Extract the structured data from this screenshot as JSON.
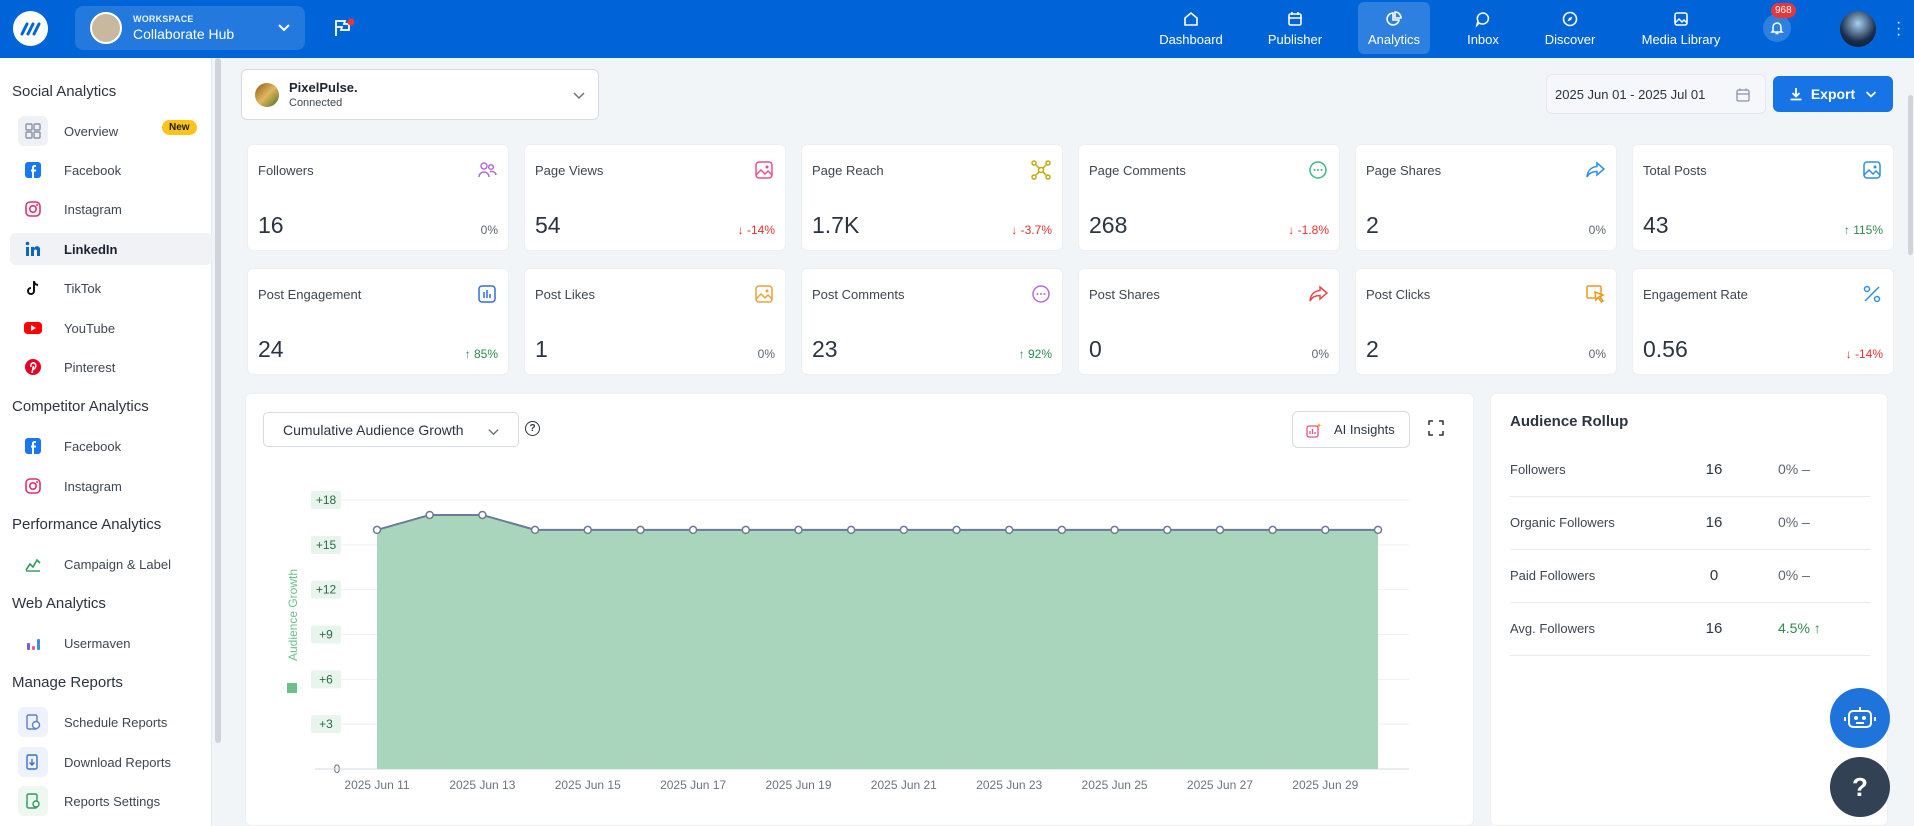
{
  "topbar": {
    "workspace_label": "WORKSPACE",
    "workspace_name": "Collaborate Hub",
    "nav": [
      {
        "label": "Dashboard",
        "icon": "home-icon"
      },
      {
        "label": "Publisher",
        "icon": "calendar-icon"
      },
      {
        "label": "Analytics",
        "icon": "analytics-icon",
        "active": true
      },
      {
        "label": "Inbox",
        "icon": "chat-icon"
      },
      {
        "label": "Discover",
        "icon": "compass-icon"
      },
      {
        "label": "Media Library",
        "icon": "image-icon"
      }
    ],
    "notifications": "968"
  },
  "sidebar": {
    "social_title": "Social Analytics",
    "social_items": [
      {
        "label": "Overview",
        "icon": "grid-icon"
      },
      {
        "label": "Facebook",
        "icon": "facebook-icon"
      },
      {
        "label": "Instagram",
        "icon": "instagram-icon"
      },
      {
        "label": "LinkedIn",
        "icon": "linkedin-icon",
        "active": true
      },
      {
        "label": "TikTok",
        "icon": "tiktok-icon"
      },
      {
        "label": "YouTube",
        "icon": "youtube-icon"
      },
      {
        "label": "Pinterest",
        "icon": "pinterest-icon"
      }
    ],
    "new_badge": "New",
    "competitor_title": "Competitor Analytics",
    "competitor_items": [
      {
        "label": "Facebook",
        "icon": "facebook-icon"
      },
      {
        "label": "Instagram",
        "icon": "instagram-icon"
      }
    ],
    "performance_title": "Performance Analytics",
    "performance_items": [
      {
        "label": "Campaign & Label",
        "icon": "campaign-icon"
      }
    ],
    "web_title": "Web Analytics",
    "web_items": [
      {
        "label": "Usermaven",
        "icon": "usermaven-icon"
      }
    ],
    "reports_title": "Manage Reports",
    "reports_items": [
      {
        "label": "Schedule Reports",
        "icon": "schedule-icon"
      },
      {
        "label": "Download Reports",
        "icon": "download-icon"
      },
      {
        "label": "Reports Settings",
        "icon": "settings-icon"
      }
    ]
  },
  "account": {
    "name": "PixelPulse.",
    "status": "Connected"
  },
  "date_range": "2025 Jun 01 - 2025 Jul 01",
  "export_label": "Export",
  "metrics": [
    {
      "title": "Followers",
      "value": "16",
      "change": "0%",
      "dir": "flat",
      "icon": "users-icon",
      "color": "#b46bd8"
    },
    {
      "title": "Page Views",
      "value": "54",
      "change": "-14%",
      "dir": "down",
      "icon": "image-icon",
      "color": "#e8508a"
    },
    {
      "title": "Page Reach",
      "value": "1.7K",
      "change": "-3.7%",
      "dir": "down",
      "icon": "network-icon",
      "color": "#c4a80c"
    },
    {
      "title": "Page Comments",
      "value": "268",
      "change": "-1.8%",
      "dir": "down",
      "icon": "comment-icon",
      "color": "#3cb88a"
    },
    {
      "title": "Page Shares",
      "value": "2",
      "change": "0%",
      "dir": "flat",
      "icon": "share-icon",
      "color": "#2f8fe0"
    },
    {
      "title": "Total Posts",
      "value": "43",
      "change": "115%",
      "dir": "up",
      "icon": "image-icon",
      "color": "#2f8fe0"
    },
    {
      "title": "Post Engagement",
      "value": "24",
      "change": "85%",
      "dir": "up",
      "icon": "bar-chart-icon",
      "color": "#2f6fe0"
    },
    {
      "title": "Post Likes",
      "value": "1",
      "change": "0%",
      "dir": "flat",
      "icon": "image-icon",
      "color": "#e8a23c"
    },
    {
      "title": "Post Comments",
      "value": "23",
      "change": "92%",
      "dir": "up",
      "icon": "comment-icon",
      "color": "#b46bd8"
    },
    {
      "title": "Post Shares",
      "value": "0",
      "change": "0%",
      "dir": "flat",
      "icon": "share-icon",
      "color": "#e84a4a"
    },
    {
      "title": "Post Clicks",
      "value": "2",
      "change": "0%",
      "dir": "flat",
      "icon": "click-icon",
      "color": "#e89a1c"
    },
    {
      "title": "Engagement Rate",
      "value": "0.56",
      "change": "-14%",
      "dir": "down",
      "icon": "percent-icon",
      "color": "#2f8fe0"
    }
  ],
  "chart_panel": {
    "selector": "Cumulative Audience Growth",
    "ai_label": "AI Insights"
  },
  "chart_data": {
    "type": "area",
    "ylabel": "Audience Growth",
    "ylim": [
      0,
      18
    ],
    "yticks": [
      "0",
      "+3",
      "+6",
      "+9",
      "+12",
      "+15",
      "+18"
    ],
    "x": [
      "2025 Jun 11",
      "2025 Jun 12",
      "2025 Jun 13",
      "2025 Jun 14",
      "2025 Jun 15",
      "2025 Jun 16",
      "2025 Jun 17",
      "2025 Jun 18",
      "2025 Jun 19",
      "2025 Jun 20",
      "2025 Jun 21",
      "2025 Jun 22",
      "2025 Jun 23",
      "2025 Jun 24",
      "2025 Jun 25",
      "2025 Jun 26",
      "2025 Jun 27",
      "2025 Jun 28",
      "2025 Jun 29",
      "2025 Jun 30"
    ],
    "xtick_labels": [
      "2025 Jun 11",
      "2025 Jun 13",
      "2025 Jun 15",
      "2025 Jun 17",
      "2025 Jun 19",
      "2025 Jun 21",
      "2025 Jun 23",
      "2025 Jun 25",
      "2025 Jun 27",
      "2025 Jun 29"
    ],
    "values": [
      16,
      17,
      17,
      16,
      16,
      16,
      16,
      16,
      16,
      16,
      16,
      16,
      16,
      16,
      16,
      16,
      16,
      16,
      16,
      16
    ],
    "fill_color": "#a8d5bb",
    "line_color": "#6b7a96",
    "grid": true
  },
  "rollup": {
    "title": "Audience Rollup",
    "rows": [
      {
        "label": "Followers",
        "value": "16",
        "change": "0% –",
        "up": false
      },
      {
        "label": "Organic Followers",
        "value": "16",
        "change": "0% –",
        "up": false
      },
      {
        "label": "Paid Followers",
        "value": "0",
        "change": "0% –",
        "up": false
      },
      {
        "label": "Avg. Followers",
        "value": "16",
        "change": "4.5% ↑",
        "up": true
      }
    ]
  }
}
